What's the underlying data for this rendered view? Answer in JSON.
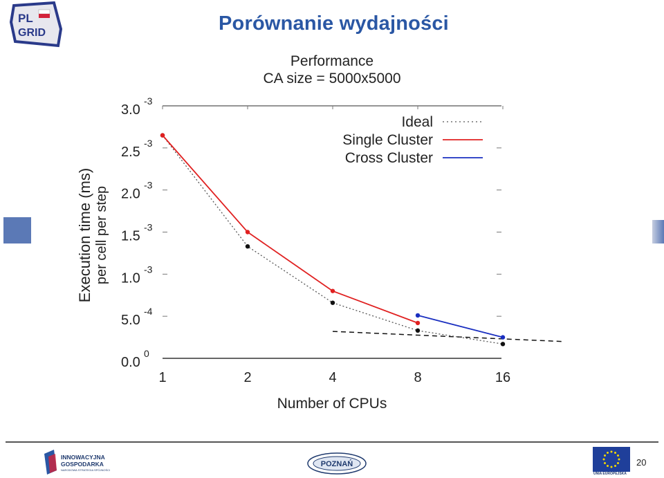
{
  "slide": {
    "title": "Porównanie wydajności",
    "page_number": "20",
    "logo_text_top": "PL",
    "logo_text_bottom": "GRID",
    "footer_left_line1": "INNOWACYJNA",
    "footer_left_line2": "GOSPODARKA",
    "footer_left_sub": "NARODOWA STRATEGIA SPÓJNOŚCI",
    "footer_center_text": "POZNAŃ",
    "footer_right_text": "UNIA EUROPEJSKA"
  },
  "colors": {
    "title": "#2a57a4",
    "single_cluster": "#e02020",
    "cross_cluster": "#1a2fc0",
    "ideal": "#555555",
    "axis": "#222222"
  },
  "chart_data": {
    "type": "line",
    "title": "Performance",
    "subtitle": "CA size = 5000x5000",
    "xlabel": "Number of CPUs",
    "ylabel_line1": "Execution time (ms)",
    "ylabel_line2": "per cell per step",
    "x": [
      1,
      2,
      4,
      8,
      16
    ],
    "x_scale": "log2",
    "x_tick_labels": [
      "1",
      "2",
      "4",
      "8",
      "16"
    ],
    "ylim": [
      0,
      0.003
    ],
    "y_ticks": [
      {
        "value": 0.003,
        "base": "3.0",
        "exp": "-3"
      },
      {
        "value": 0.0025,
        "base": "2.5",
        "exp": "-3"
      },
      {
        "value": 0.002,
        "base": "2.0",
        "exp": "-3"
      },
      {
        "value": 0.0015,
        "base": "1.5",
        "exp": "-3"
      },
      {
        "value": 0.001,
        "base": "1.0",
        "exp": "-3"
      },
      {
        "value": 0.0005,
        "base": "5.0",
        "exp": "-4"
      },
      {
        "value": 0.0,
        "base": "0.0",
        "exp": "0"
      }
    ],
    "legend_position": "top-right",
    "series": [
      {
        "name": "Ideal",
        "style": "dotted",
        "color": "#555555",
        "points": [
          [
            1,
            0.00265
          ],
          [
            2,
            0.00133
          ],
          [
            4,
            0.00066
          ],
          [
            8,
            0.00033
          ],
          [
            16,
            0.00017
          ]
        ]
      },
      {
        "name": "Single Cluster",
        "style": "solid",
        "color": "#e02020",
        "points": [
          [
            1,
            0.00265
          ],
          [
            2,
            0.0015
          ],
          [
            4,
            0.0008
          ],
          [
            8,
            0.00042
          ]
        ]
      },
      {
        "name": "Cross Cluster",
        "style": "solid",
        "color": "#1a2fc0",
        "points": [
          [
            8,
            0.00051
          ],
          [
            16,
            0.00025
          ]
        ]
      }
    ],
    "trend_line": {
      "style": "dashed",
      "color": "#111111",
      "points": [
        [
          4,
          0.00032
        ],
        [
          26,
          0.0002
        ]
      ]
    }
  }
}
